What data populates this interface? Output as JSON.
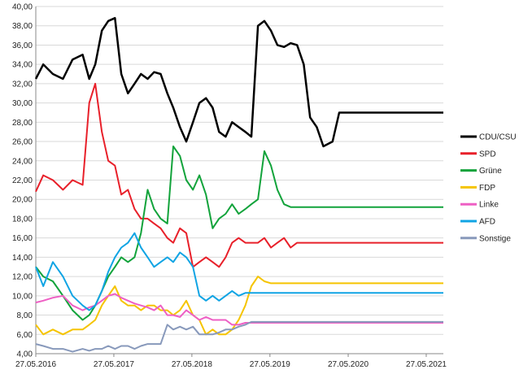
{
  "chart_data": {
    "type": "line",
    "title": "",
    "xlabel": "",
    "ylabel": "",
    "ylim": [
      4,
      40
    ],
    "y_ticks": [
      "4,00",
      "6,00",
      "8,00",
      "10,00",
      "12,00",
      "14,00",
      "16,00",
      "18,00",
      "20,00",
      "22,00",
      "24,00",
      "26,00",
      "28,00",
      "30,00",
      "32,00",
      "34,00",
      "36,00",
      "38,00",
      "40,00"
    ],
    "x_ticks": [
      "27.05.2016",
      "27.05.2017",
      "27.05.2018",
      "27.05.2019",
      "27.05.2020",
      "27.05.2021"
    ],
    "x_range": [
      "2016-05-27",
      "2021-08-15"
    ],
    "grid": "horizontal",
    "legend_position": "right",
    "x": [
      "2016-05-27",
      "2016-07-01",
      "2016-08-15",
      "2016-10-01",
      "2016-11-15",
      "2017-01-01",
      "2017-02-01",
      "2017-03-01",
      "2017-04-01",
      "2017-05-01",
      "2017-06-01",
      "2017-07-01",
      "2017-08-01",
      "2017-09-01",
      "2017-10-01",
      "2017-11-01",
      "2017-12-01",
      "2018-01-01",
      "2018-02-01",
      "2018-03-01",
      "2018-04-01",
      "2018-05-01",
      "2018-06-01",
      "2018-07-01",
      "2018-08-01",
      "2018-09-01",
      "2018-10-01",
      "2018-11-01",
      "2018-12-01",
      "2019-01-01",
      "2019-02-01",
      "2019-03-01",
      "2019-04-01",
      "2019-05-01",
      "2019-06-01",
      "2019-07-01",
      "2019-08-01",
      "2019-09-01",
      "2019-10-01",
      "2019-11-01",
      "2019-12-01",
      "2020-01-01",
      "2020-02-01",
      "2020-03-15",
      "2020-04-15",
      "2020-05-15",
      "2020-06-15",
      "2020-07-15",
      "2020-08-15",
      "2020-09-15",
      "2020-10-15",
      "2020-11-15",
      "2020-12-15",
      "2021-01-15",
      "2021-02-15",
      "2021-03-15",
      "2021-04-15",
      "2021-05-01",
      "2021-05-15",
      "2021-06-15",
      "2021-07-15",
      "2021-08-15"
    ],
    "series": [
      {
        "name": "CDU/CSU",
        "color": "#000000",
        "values": [
          32.5,
          34.0,
          33.0,
          32.5,
          34.5,
          35.0,
          32.5,
          34.0,
          37.5,
          38.5,
          38.8,
          33.0,
          31.0,
          32.0,
          33.0,
          32.5,
          33.2,
          33.0,
          31.0,
          29.5,
          27.5,
          26.0,
          28.0,
          30.0,
          30.5,
          29.5,
          27.0,
          26.5,
          28.0,
          27.5,
          27.0,
          26.5,
          38.0,
          38.5,
          37.5,
          36.0,
          35.8,
          36.2,
          36.0,
          34.0,
          28.5,
          27.5,
          25.5,
          26.0,
          29.0,
          29.0,
          29.0,
          29.0,
          29.0,
          29.0,
          29.0,
          29.0,
          29.0,
          29.0,
          29.0,
          29.0,
          29.0,
          29.0,
          29.0,
          29.0,
          29.0,
          29.0
        ]
      },
      {
        "name": "SPD",
        "color": "#e8202a",
        "values": [
          20.8,
          22.5,
          22.0,
          21.0,
          22.0,
          21.5,
          30.0,
          32.0,
          27.0,
          24.0,
          23.5,
          20.5,
          21.0,
          19.0,
          18.0,
          18.0,
          17.5,
          17.0,
          16.0,
          15.5,
          17.0,
          16.5,
          13.0,
          13.5,
          14.0,
          13.5,
          13.0,
          14.0,
          15.5,
          16.0,
          15.5,
          15.5,
          15.5,
          16.0,
          15.0,
          15.5,
          16.0,
          15.0,
          15.5,
          15.5,
          15.5,
          15.5,
          15.5,
          15.5,
          15.5,
          15.5,
          15.5,
          15.5,
          15.5,
          15.5,
          15.5,
          15.5,
          15.5,
          15.5,
          15.5,
          15.5,
          15.5,
          15.5,
          15.5,
          15.5,
          15.5,
          15.5
        ]
      },
      {
        "name": "Grüne",
        "color": "#12a33b",
        "values": [
          13.0,
          12.0,
          11.5,
          10.0,
          8.5,
          7.5,
          8.0,
          9.0,
          10.5,
          12.0,
          13.0,
          14.0,
          13.5,
          14.0,
          16.5,
          21.0,
          19.0,
          18.0,
          17.5,
          25.5,
          24.5,
          22.0,
          21.0,
          22.5,
          20.5,
          17.0,
          18.0,
          18.5,
          19.5,
          18.5,
          19.0,
          19.5,
          20.0,
          25.0,
          23.5,
          21.0,
          19.5,
          19.2,
          19.2,
          19.2,
          19.2,
          19.2,
          19.2,
          19.2,
          19.2,
          19.2,
          19.2,
          19.2,
          19.2,
          19.2,
          19.2,
          19.2,
          19.2,
          19.2,
          19.2,
          19.2,
          19.2,
          19.2,
          19.2,
          19.2,
          19.2,
          19.2
        ]
      },
      {
        "name": "FDP",
        "color": "#f5c400",
        "values": [
          7.0,
          6.0,
          6.5,
          6.0,
          6.5,
          6.5,
          7.0,
          7.5,
          9.0,
          10.0,
          11.0,
          9.5,
          9.0,
          9.0,
          8.5,
          9.0,
          9.0,
          8.5,
          8.5,
          8.0,
          8.5,
          9.5,
          8.0,
          7.5,
          6.0,
          6.5,
          6.0,
          6.0,
          6.5,
          7.5,
          9.0,
          11.0,
          12.0,
          11.5,
          11.3,
          11.3,
          11.3,
          11.3,
          11.3,
          11.3,
          11.3,
          11.3,
          11.3,
          11.3,
          11.3,
          11.3,
          11.3,
          11.3,
          11.3,
          11.3,
          11.3,
          11.3,
          11.3,
          11.3,
          11.3,
          11.3,
          11.3,
          11.3,
          11.3,
          11.3,
          11.3,
          11.3
        ]
      },
      {
        "name": "Linke",
        "color": "#ee5fc4",
        "values": [
          9.3,
          9.5,
          9.8,
          10.0,
          9.0,
          8.5,
          8.8,
          9.0,
          9.5,
          10.0,
          10.2,
          9.8,
          9.5,
          9.2,
          9.0,
          8.8,
          8.5,
          9.0,
          8.0,
          8.0,
          7.8,
          8.5,
          8.0,
          7.5,
          7.8,
          7.5,
          7.5,
          7.5,
          7.0,
          7.0,
          7.2,
          7.2,
          7.2,
          7.2,
          7.2,
          7.2,
          7.2,
          7.2,
          7.2,
          7.2,
          7.2,
          7.2,
          7.2,
          7.2,
          7.2,
          7.2,
          7.2,
          7.2,
          7.2,
          7.2,
          7.2,
          7.2,
          7.2,
          7.2,
          7.2,
          7.2,
          7.2,
          7.2,
          7.2,
          7.2,
          7.2,
          7.2
        ]
      },
      {
        "name": "AFD",
        "color": "#10a4e4",
        "values": [
          13.0,
          11.0,
          13.5,
          12.0,
          10.0,
          9.0,
          8.5,
          9.0,
          10.5,
          12.5,
          14.0,
          15.0,
          15.5,
          16.5,
          15.0,
          14.0,
          13.0,
          13.5,
          14.0,
          13.5,
          14.5,
          14.0,
          13.0,
          10.0,
          9.5,
          10.0,
          9.5,
          10.0,
          10.5,
          10.0,
          10.3,
          10.3,
          10.3,
          10.3,
          10.3,
          10.3,
          10.3,
          10.3,
          10.3,
          10.3,
          10.3,
          10.3,
          10.3,
          10.3,
          10.3,
          10.3,
          10.3,
          10.3,
          10.3,
          10.3,
          10.3,
          10.3,
          10.3,
          10.3,
          10.3,
          10.3,
          10.3,
          10.3,
          10.3,
          10.3,
          10.3,
          10.3
        ]
      },
      {
        "name": "Sonstige",
        "color": "#8899bb",
        "values": [
          5.0,
          4.8,
          4.5,
          4.5,
          4.2,
          4.5,
          4.3,
          4.5,
          4.5,
          4.8,
          4.5,
          4.8,
          4.8,
          4.5,
          4.8,
          5.0,
          5.0,
          5.0,
          7.0,
          6.5,
          6.8,
          6.5,
          6.8,
          6.0,
          6.0,
          6.0,
          6.2,
          6.5,
          6.5,
          6.8,
          7.0,
          7.3,
          7.3,
          7.3,
          7.3,
          7.3,
          7.3,
          7.3,
          7.3,
          7.3,
          7.3,
          7.3,
          7.3,
          7.3,
          7.3,
          7.3,
          7.3,
          7.3,
          7.3,
          7.3,
          7.3,
          7.3,
          7.3,
          7.3,
          7.3,
          7.3,
          7.3,
          7.3,
          7.3,
          7.3,
          7.3,
          7.3
        ]
      }
    ]
  }
}
